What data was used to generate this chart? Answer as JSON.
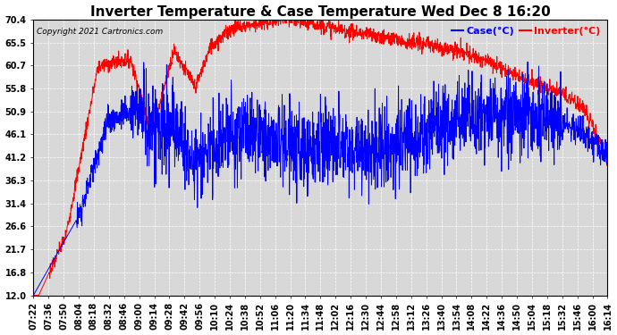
{
  "title": "Inverter Temperature & Case Temperature Wed Dec 8 16:20",
  "copyright": "Copyright 2021 Cartronics.com",
  "legend_case": "Case(°C)",
  "legend_inverter": "Inverter(°C)",
  "yticks": [
    12.0,
    16.8,
    21.7,
    26.6,
    31.4,
    36.3,
    41.2,
    46.1,
    50.9,
    55.8,
    60.7,
    65.5,
    70.4
  ],
  "ymin": 12.0,
  "ymax": 70.4,
  "background_color": "#ffffff",
  "plot_bg_color": "#d8d8d8",
  "grid_color": "#ffffff",
  "case_color": "blue",
  "inverter_color": "red",
  "title_fontsize": 11,
  "tick_fontsize": 7,
  "xtick_start_h": 7,
  "xtick_start_m": 22,
  "xtick_end_h": 16,
  "xtick_end_m": 14,
  "xtick_interval_minutes": 14
}
